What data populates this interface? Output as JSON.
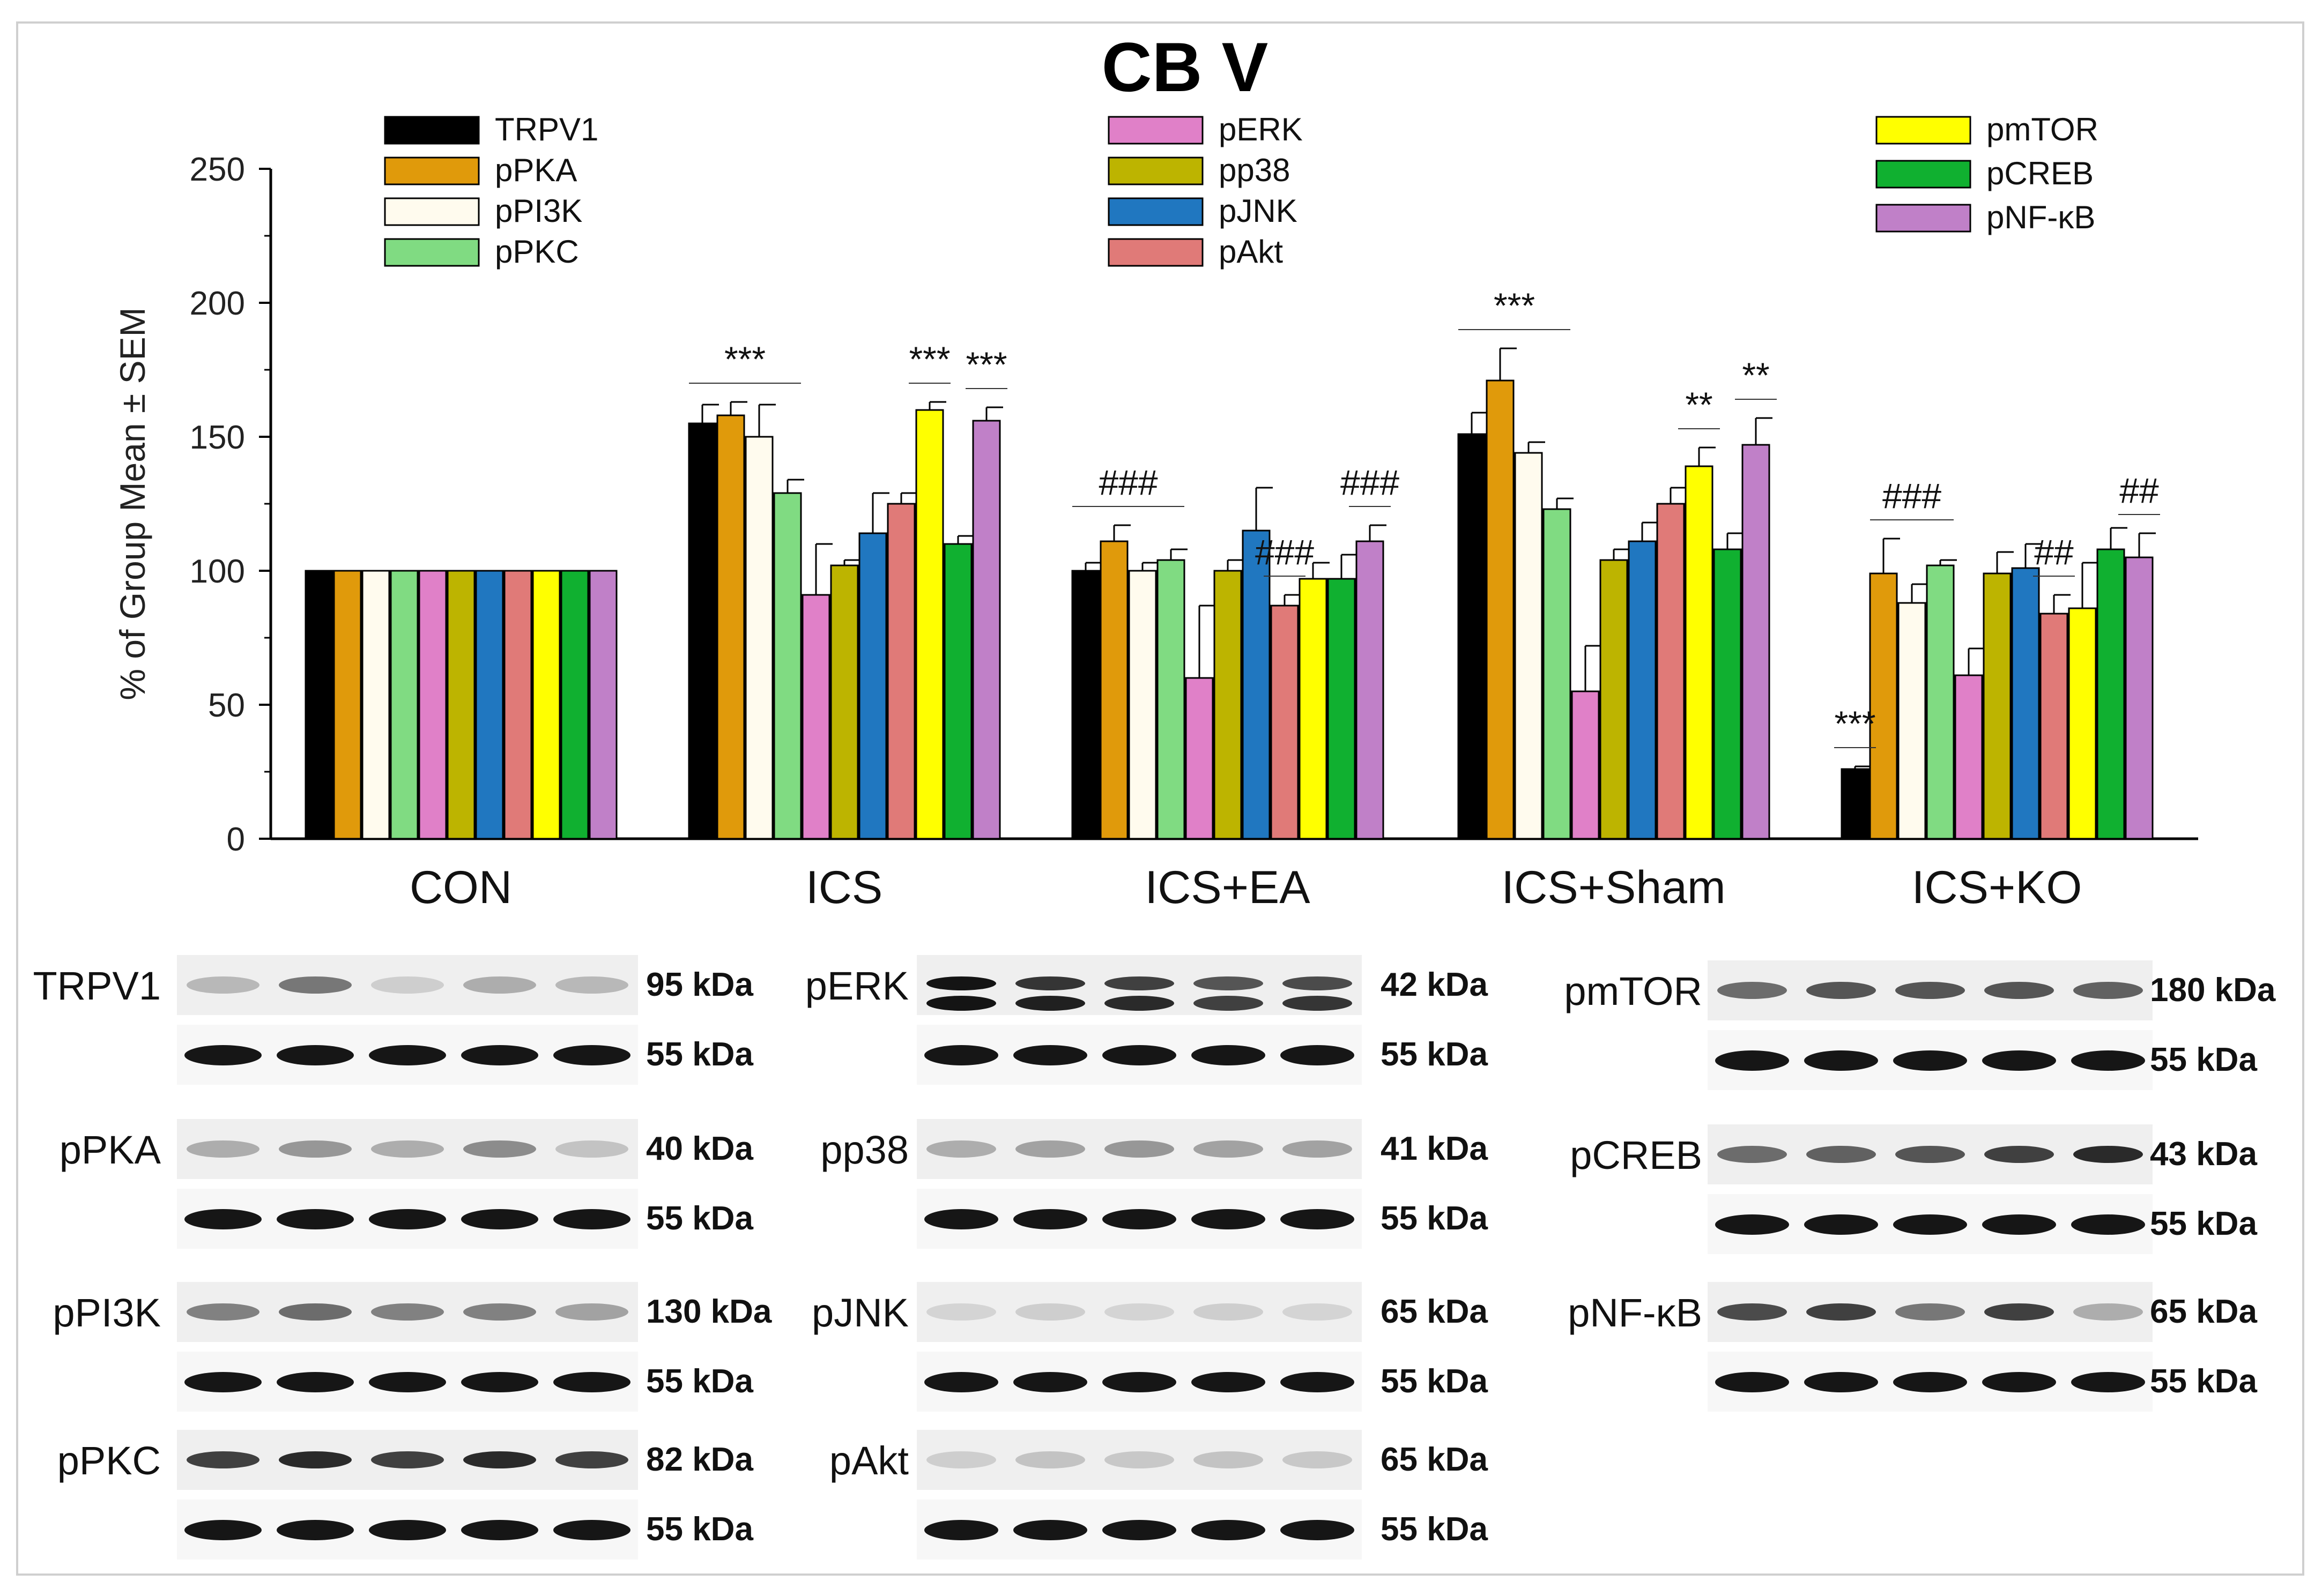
{
  "chart_data": {
    "type": "bar",
    "title": "CB V",
    "ylabel": "% of Group Mean ± SEM",
    "xlabel": "",
    "ylim": [
      0,
      250
    ],
    "yticks": [
      0,
      50,
      100,
      150,
      200,
      250
    ],
    "categories": [
      "CON",
      "ICS",
      "ICS+EA",
      "ICS+Sham",
      "ICS+KO"
    ],
    "series": [
      {
        "name": "TRPV1",
        "color": "#000000",
        "values": [
          100,
          155,
          100,
          151,
          26
        ],
        "errors": [
          0,
          7,
          3,
          8,
          1
        ]
      },
      {
        "name": "pPKA",
        "color": "#E09A0B",
        "values": [
          100,
          158,
          111,
          171,
          99
        ],
        "errors": [
          0,
          5,
          6,
          12,
          13
        ]
      },
      {
        "name": "pPI3K",
        "color": "#FFFBEE",
        "values": [
          100,
          150,
          100,
          144,
          88
        ],
        "errors": [
          0,
          12,
          3,
          4,
          7
        ]
      },
      {
        "name": "pPKC",
        "color": "#80DB82",
        "values": [
          100,
          129,
          104,
          123,
          102
        ],
        "errors": [
          0,
          5,
          4,
          4,
          2
        ]
      },
      {
        "name": "pERK",
        "color": "#E080C8",
        "values": [
          100,
          91,
          60,
          55,
          61
        ],
        "errors": [
          0,
          19,
          27,
          17,
          10
        ]
      },
      {
        "name": "pp38",
        "color": "#BDB400",
        "values": [
          100,
          102,
          100,
          104,
          99
        ],
        "errors": [
          0,
          2,
          4,
          4,
          8
        ]
      },
      {
        "name": "pJNK",
        "color": "#2077C0",
        "values": [
          100,
          114,
          115,
          111,
          101
        ],
        "errors": [
          0,
          15,
          16,
          7,
          9
        ]
      },
      {
        "name": "pAkt",
        "color": "#E07A78",
        "values": [
          100,
          125,
          87,
          125,
          84
        ],
        "errors": [
          0,
          4,
          4,
          6,
          7
        ]
      },
      {
        "name": "pmTOR",
        "color": "#FFFF00",
        "values": [
          100,
          160,
          97,
          139,
          86
        ],
        "errors": [
          0,
          3,
          6,
          7,
          17
        ]
      },
      {
        "name": "pCREB",
        "color": "#10B030",
        "values": [
          100,
          110,
          97,
          108,
          108
        ],
        "errors": [
          0,
          3,
          9,
          6,
          8
        ]
      },
      {
        "name": "pNF-κB",
        "color": "#C080C8",
        "values": [
          100,
          156,
          111,
          147,
          105
        ],
        "errors": [
          0,
          5,
          6,
          10,
          9
        ]
      }
    ],
    "annotations": [
      {
        "group": "ICS",
        "text": "***",
        "span": [
          0,
          3
        ]
      },
      {
        "group": "ICS",
        "text": "***",
        "span": [
          8,
          8
        ]
      },
      {
        "group": "ICS",
        "text": "***",
        "span": [
          10,
          10
        ]
      },
      {
        "group": "ICS+EA",
        "text": "###",
        "span": [
          0,
          3
        ]
      },
      {
        "group": "ICS+EA",
        "text": "###",
        "span": [
          7,
          7
        ]
      },
      {
        "group": "ICS+EA",
        "text": "###",
        "span": [
          10,
          10
        ]
      },
      {
        "group": "ICS+Sham",
        "text": "***",
        "span": [
          0,
          3
        ]
      },
      {
        "group": "ICS+Sham",
        "text": "**",
        "span": [
          8,
          8
        ]
      },
      {
        "group": "ICS+Sham",
        "text": "**",
        "span": [
          10,
          10
        ]
      },
      {
        "group": "ICS+KO",
        "text": "***",
        "span": [
          0,
          0
        ]
      },
      {
        "group": "ICS+KO",
        "text": "###",
        "span": [
          1,
          3
        ]
      },
      {
        "group": "ICS+KO",
        "text": "##",
        "span": [
          7,
          7
        ]
      },
      {
        "group": "ICS+KO",
        "text": "##",
        "span": [
          10,
          10
        ]
      }
    ],
    "legend_columns": [
      [
        "TRPV1",
        "pPKA",
        "pPI3K",
        "pPKC"
      ],
      [
        "pERK",
        "pp38",
        "pJNK",
        "pAkt"
      ],
      [
        "pmTOR",
        "pCREB",
        "pNF-κB"
      ]
    ]
  },
  "blots": [
    {
      "label": "TRPV1",
      "kda": "95 kDa",
      "control_kda": "55 kDa",
      "column": 0,
      "row": 0,
      "intensities": [
        0.25,
        0.55,
        0.15,
        0.3,
        0.25
      ]
    },
    {
      "label": "pPKA",
      "kda": "40 kDa",
      "control_kda": "55 kDa",
      "column": 0,
      "row": 1,
      "intensities": [
        0.3,
        0.4,
        0.3,
        0.45,
        0.2
      ]
    },
    {
      "label": "pPI3K",
      "kda": "130 kDa",
      "control_kda": "55 kDa",
      "column": 0,
      "row": 2,
      "intensities": [
        0.5,
        0.6,
        0.5,
        0.5,
        0.35
      ]
    },
    {
      "label": "pPKC",
      "kda": "82 kDa",
      "control_kda": "55 kDa",
      "column": 0,
      "row": 3,
      "intensities": [
        0.8,
        0.9,
        0.8,
        0.9,
        0.8
      ]
    },
    {
      "label": "pERK",
      "kda": "42 kDa",
      "control_kda": "55 kDa",
      "column": 1,
      "row": 0,
      "intensities": [
        1.0,
        0.85,
        0.8,
        0.7,
        0.75
      ]
    },
    {
      "label": "pp38",
      "kda": "41 kDa",
      "control_kda": "55 kDa",
      "column": 1,
      "row": 1,
      "intensities": [
        0.3,
        0.35,
        0.4,
        0.35,
        0.35
      ]
    },
    {
      "label": "pJNK",
      "kda": "65 kDa",
      "control_kda": "55 kDa",
      "column": 1,
      "row": 2,
      "intensities": [
        0.12,
        0.15,
        0.12,
        0.15,
        0.12
      ]
    },
    {
      "label": "pAkt",
      "kda": "65 kDa",
      "control_kda": "55 kDa",
      "column": 1,
      "row": 3,
      "intensities": [
        0.15,
        0.2,
        0.18,
        0.2,
        0.18
      ]
    },
    {
      "label": "pmTOR",
      "kda": "180 kDa",
      "control_kda": "55 kDa",
      "column": 2,
      "row": 0,
      "intensities": [
        0.6,
        0.7,
        0.7,
        0.7,
        0.65
      ]
    },
    {
      "label": "pCREB",
      "kda": "43 kDa",
      "control_kda": "55 kDa",
      "column": 2,
      "row": 1,
      "intensities": [
        0.6,
        0.65,
        0.7,
        0.8,
        0.9
      ]
    },
    {
      "label": "pNF-κB",
      "kda": "65 kDa",
      "control_kda": "55 kDa",
      "column": 2,
      "row": 2,
      "intensities": [
        0.75,
        0.8,
        0.55,
        0.8,
        0.3
      ]
    }
  ]
}
